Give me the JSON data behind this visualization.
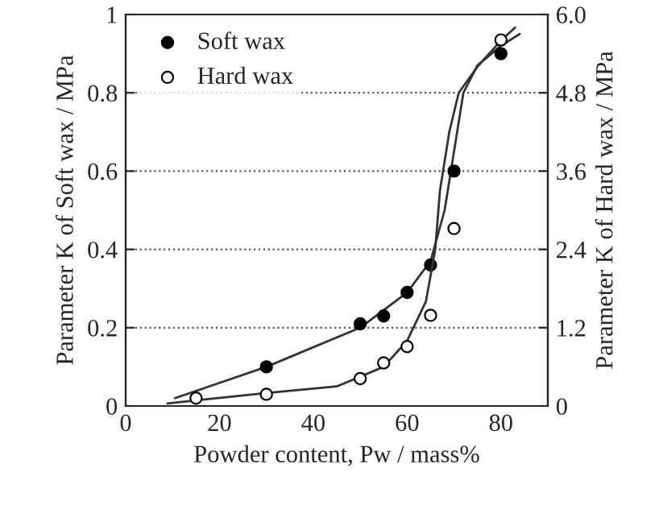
{
  "chart_data": {
    "type": "scatter",
    "xlabel": "Powder content, Pw / mass%",
    "ylabel": "Parameter K of Soft wax / MPa",
    "y2label": "Parameter K of Hard wax / MPa",
    "xlim": [
      0,
      90
    ],
    "xticks": [
      0,
      20,
      40,
      60,
      80
    ],
    "ylim": [
      0,
      1
    ],
    "yticks": [
      0,
      0.2,
      0.4,
      0.6,
      0.8,
      1
    ],
    "y2lim": [
      0,
      6
    ],
    "y2ticks": [
      0,
      1.2,
      2.4,
      3.6,
      4.8,
      {
        "value": 6,
        "label": "6.0"
      }
    ],
    "grid": "y",
    "legend": "top left",
    "marker": "circle",
    "series": [
      {
        "name": "Soft wax",
        "color": "#000000",
        "x": [
          30,
          50,
          55,
          60,
          65,
          70,
          80
        ],
        "values": [
          0.1,
          0.21,
          0.23,
          0.29,
          0.36,
          0.6,
          0.9
        ]
      },
      {
        "name": "Hard wax",
        "color": "#000000",
        "axis": "y2",
        "x": [
          15,
          30,
          50,
          55,
          60,
          65,
          70,
          80
        ],
        "values": [
          0.12,
          0.18,
          0.42,
          0.66,
          0.91,
          1.39,
          2.72,
          5.61
        ]
      },
      {
        "type": "line",
        "color": "#333333",
        "marker": "none",
        "x": [
          10.5,
          30,
          50,
          60,
          65,
          68,
          70,
          72,
          75,
          80,
          84
        ],
        "values": [
          0.02,
          0.1,
          0.2,
          0.29,
          0.37,
          0.5,
          0.65,
          0.8,
          0.87,
          0.92,
          0.95
        ]
      },
      {
        "type": "line",
        "color": "#333333",
        "marker": "none",
        "axis": "y2",
        "x": [
          8.9,
          30,
          45,
          55,
          60,
          64,
          66,
          67,
          69,
          71,
          75,
          80,
          83
        ],
        "values": [
          0.04,
          0.2,
          0.3,
          0.6,
          1.0,
          1.6,
          2.4,
          3.3,
          4.2,
          4.8,
          5.2,
          5.6,
          5.8
        ]
      }
    ]
  }
}
